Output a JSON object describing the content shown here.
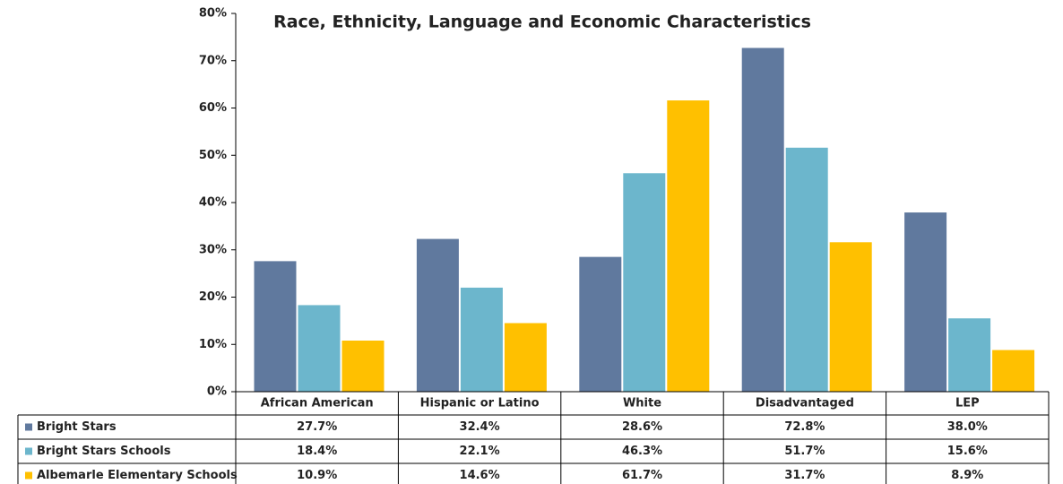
{
  "chart_data": {
    "type": "bar",
    "title": "Race, Ethnicity, Language and Economic Characteristics",
    "categories": [
      "African American",
      "Hispanic or Latino",
      "White",
      "Disadvantaged",
      "LEP"
    ],
    "series": [
      {
        "name": "Bright Stars",
        "color": "#60799e",
        "values": [
          27.7,
          32.4,
          28.6,
          72.8,
          38.0
        ],
        "value_labels": [
          "27.7%",
          "32.4%",
          "28.6%",
          "72.8%",
          "38.0%"
        ]
      },
      {
        "name": "Bright Stars Schools",
        "color": "#6cb6cc",
        "values": [
          18.4,
          22.1,
          46.3,
          51.7,
          15.6
        ],
        "value_labels": [
          "18.4%",
          "22.1%",
          "46.3%",
          "51.7%",
          "15.6%"
        ]
      },
      {
        "name": "Albemarle Elementary Schools",
        "color": "#ffc000",
        "values": [
          10.9,
          14.6,
          61.7,
          31.7,
          8.9
        ],
        "value_labels": [
          "10.9%",
          "14.6%",
          "61.7%",
          "31.7%",
          "8.9%"
        ]
      }
    ],
    "ylim": [
      0,
      80
    ],
    "yticks": [
      {
        "value": 0,
        "label": "0%"
      },
      {
        "value": 10,
        "label": "10%"
      },
      {
        "value": 20,
        "label": "20%"
      },
      {
        "value": 30,
        "label": "30%"
      },
      {
        "value": 40,
        "label": "40%"
      },
      {
        "value": 50,
        "label": "50%"
      },
      {
        "value": 60,
        "label": "60%"
      },
      {
        "value": 70,
        "label": "70%"
      },
      {
        "value": 80,
        "label": "80%"
      }
    ],
    "grid": false
  }
}
